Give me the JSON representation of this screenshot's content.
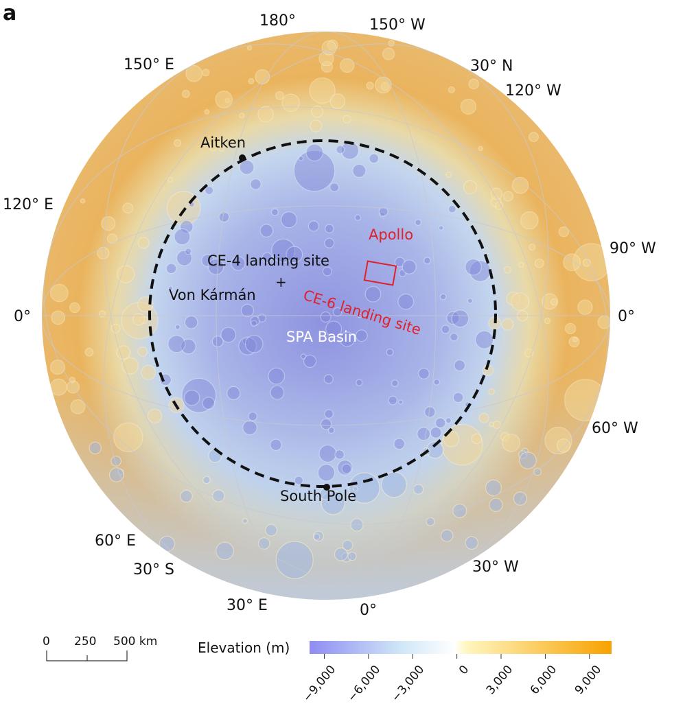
{
  "panel_label": "a",
  "grid_labels": {
    "lon_180": "180°",
    "lon_150w": "150° W",
    "lon_150e": "150° E",
    "lat_30n": "30° N",
    "lon_120w": "120° W",
    "lon_120e": "120° E",
    "lon_90w": "90° W",
    "lat_0_left": "0°",
    "lat_0_right": "0°",
    "lon_60w": "60° W",
    "lon_60e": "60° E",
    "lat_30s": "30° S",
    "lon_30w": "30° W",
    "lon_30e": "30° E",
    "lon_0": "0°"
  },
  "features": {
    "aitken": "Aitken",
    "apollo": "Apollo",
    "ce4": "CE-4 landing site",
    "von_karman": "Von Kármán",
    "ce6": "CE-6 landing site",
    "spa_basin": "SPA Basin",
    "south_pole": "South Pole"
  },
  "scale_bar": {
    "ticks": [
      "0",
      "250",
      "500 km"
    ]
  },
  "colorbar": {
    "title": "Elevation (m)",
    "ticks": [
      "−9,000",
      "−6,000",
      "−3,000",
      "0",
      "3,000",
      "6,000",
      "9,000"
    ],
    "colors": [
      "#8e8cf2",
      "#cfe6f7",
      "#ffffff",
      "#fff6c0",
      "#f7a200"
    ]
  },
  "colors": {
    "annotation_red": "#e0202a",
    "basin_outline": "#111111"
  }
}
